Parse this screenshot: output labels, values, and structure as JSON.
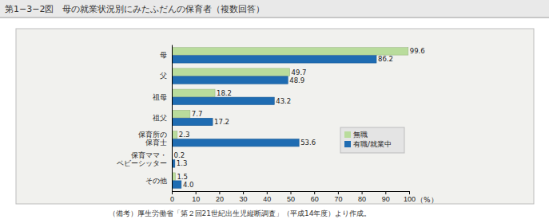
{
  "chart_data": {
    "type": "bar",
    "title": "第1−3−2図　母の就業状況別にみたふだんの保育者（複数回答）",
    "orientation": "horizontal",
    "categories": [
      "母",
      "父",
      "祖母",
      "祖父",
      "保育所の\n保育士",
      "保育ママ・\nベビーシッター",
      "その他"
    ],
    "series": [
      {
        "name": "無職",
        "color": "#b9dc9c",
        "values": [
          99.6,
          49.7,
          18.2,
          7.7,
          2.3,
          0.2,
          1.5
        ],
        "value_labels": [
          "99.6",
          "49.7",
          "18.2",
          "7.7",
          "2.3",
          "0.2",
          "1.5"
        ]
      },
      {
        "name": "有職/就業中",
        "color": "#1f6cb2",
        "values": [
          86.2,
          48.9,
          43.2,
          17.2,
          53.6,
          1.3,
          4.0
        ],
        "value_labels": [
          "86.2",
          "48.9",
          "43.2",
          "17.2",
          "53.6",
          "1.3",
          "4.0"
        ]
      }
    ],
    "xlim": [
      0,
      100
    ],
    "xticks": [
      0,
      10,
      20,
      30,
      40,
      50,
      60,
      70,
      80,
      90,
      100
    ],
    "x_label": "（%）",
    "grid": false,
    "legend": "lower right",
    "data_labels": true,
    "source": "（備考）厚生労働省「第２回21世紀出生児縦断調査」（平成14年度）より作成。"
  }
}
